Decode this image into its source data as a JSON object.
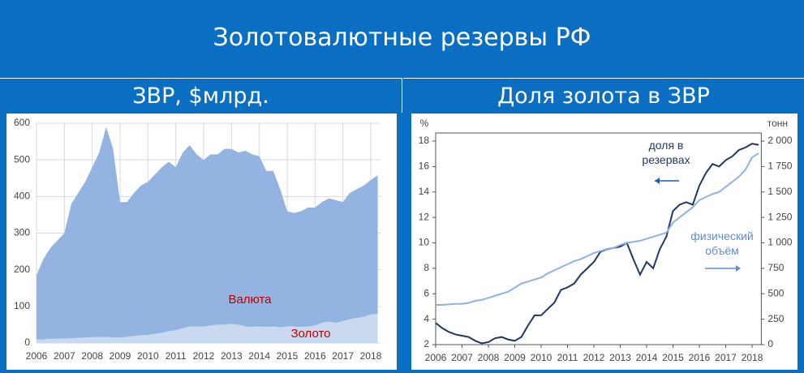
{
  "title": "Золотовалютные резервы РФ",
  "chart_data": [
    {
      "type": "area",
      "title": "ЗВР, $млрд.",
      "x": [
        2006,
        2006.25,
        2006.5,
        2006.75,
        2007,
        2007.25,
        2007.5,
        2007.75,
        2008,
        2008.25,
        2008.5,
        2008.75,
        2009,
        2009.25,
        2009.5,
        2009.75,
        2010,
        2010.25,
        2010.5,
        2010.75,
        2011,
        2011.25,
        2011.5,
        2011.75,
        2012,
        2012.25,
        2012.5,
        2012.75,
        2013,
        2013.25,
        2013.5,
        2013.75,
        2014,
        2014.25,
        2014.5,
        2014.75,
        2015,
        2015.25,
        2015.5,
        2015.75,
        2016,
        2016.25,
        2016.5,
        2016.75,
        2017,
        2017.25,
        2017.5,
        2017.75,
        2018,
        2018.25
      ],
      "series": [
        {
          "name": "Золото",
          "color": "#c9daf0",
          "label_color": "#c00000",
          "values": [
            10,
            10,
            11,
            12,
            12,
            13,
            14,
            15,
            16,
            16,
            17,
            15,
            15,
            17,
            19,
            21,
            22,
            25,
            28,
            32,
            35,
            40,
            45,
            45,
            45,
            48,
            50,
            50,
            52,
            50,
            45,
            44,
            45,
            44,
            45,
            43,
            45,
            45,
            44,
            45,
            48,
            55,
            58,
            55,
            60,
            65,
            68,
            72,
            78,
            80
          ]
        },
        {
          "name": "Валюта",
          "color": "#93b4e0",
          "label_color": "#c00000",
          "values": [
            175,
            220,
            249,
            268,
            288,
            367,
            396,
            425,
            464,
            504,
            573,
            515,
            370,
            368,
            391,
            409,
            418,
            435,
            452,
            463,
            445,
            480,
            495,
            470,
            455,
            467,
            465,
            480,
            478,
            470,
            480,
            471,
            465,
            426,
            425,
            377,
            315,
            310,
            316,
            325,
            322,
            330,
            337,
            335,
            325,
            345,
            352,
            358,
            367,
            378
          ]
        }
      ],
      "xlim": [
        2006,
        2018.35
      ],
      "xticks": [
        2006,
        2007,
        2008,
        2009,
        2010,
        2011,
        2012,
        2013,
        2014,
        2015,
        2016,
        2017,
        2018
      ],
      "ylim": [
        0,
        600
      ],
      "yticks": [
        0,
        100,
        200,
        300,
        400,
        500,
        600
      ],
      "grid": true
    },
    {
      "type": "line",
      "title": "Доля золота в ЗВР",
      "y_label": "%",
      "y2_label": "тонн",
      "x": [
        2006,
        2006.25,
        2006.5,
        2006.75,
        2007,
        2007.25,
        2007.5,
        2007.75,
        2008,
        2008.25,
        2008.5,
        2008.75,
        2009,
        2009.25,
        2009.5,
        2009.75,
        2010,
        2010.25,
        2010.5,
        2010.75,
        2011,
        2011.25,
        2011.5,
        2011.75,
        2012,
        2012.25,
        2012.5,
        2012.75,
        2013,
        2013.25,
        2013.5,
        2013.75,
        2014,
        2014.25,
        2014.5,
        2014.75,
        2015,
        2015.25,
        2015.5,
        2015.75,
        2016,
        2016.25,
        2016.5,
        2016.75,
        2017,
        2017.25,
        2017.5,
        2017.75,
        2018,
        2018.25
      ],
      "series": [
        {
          "name": "доля в резервах",
          "color": "#1f3864",
          "values": [
            3.7,
            3.3,
            3.0,
            2.8,
            2.7,
            2.6,
            2.3,
            2.1,
            2.2,
            2.5,
            2.6,
            2.4,
            2.3,
            2.6,
            3.5,
            4.3,
            4.3,
            4.8,
            5.3,
            6.3,
            6.5,
            6.8,
            7.5,
            8.0,
            8.5,
            9.3,
            9.5,
            9.6,
            9.7,
            10.0,
            8.7,
            7.5,
            8.5,
            8.0,
            9.5,
            10.5,
            12.5,
            13.0,
            13.2,
            13.0,
            14.5,
            15.5,
            16.2,
            16.0,
            16.5,
            16.8,
            17.3,
            17.5,
            17.8,
            17.7
          ]
        },
        {
          "name": "физический объём",
          "color": "#8db3e2",
          "axis": "y2",
          "values": [
            390,
            390,
            395,
            400,
            400,
            410,
            430,
            440,
            460,
            480,
            500,
            520,
            560,
            600,
            620,
            640,
            660,
            700,
            730,
            760,
            790,
            820,
            840,
            870,
            900,
            920,
            940,
            950,
            980,
            1000,
            1010,
            1020,
            1040,
            1060,
            1080,
            1100,
            1200,
            1250,
            1300,
            1350,
            1420,
            1450,
            1480,
            1500,
            1550,
            1600,
            1650,
            1720,
            1840,
            1880
          ]
        }
      ],
      "xlim": [
        2006,
        2018.35
      ],
      "xticks": [
        2006,
        2007,
        2008,
        2009,
        2010,
        2011,
        2012,
        2013,
        2014,
        2015,
        2016,
        2017,
        2018
      ],
      "ylim": [
        2,
        18
      ],
      "yticks": [
        2,
        4,
        6,
        8,
        10,
        12,
        14,
        16,
        18
      ],
      "y2lim": [
        0,
        2000
      ],
      "y2ticks": [
        0,
        250,
        500,
        750,
        {
          "value": 1000,
          "label": "1 000"
        },
        {
          "value": 1250,
          "label": "1 250"
        },
        {
          "value": 1500,
          "label": "1 500"
        },
        {
          "value": 1750,
          "label": "1 750"
        },
        {
          "value": 2000,
          "label": "2 000"
        }
      ],
      "grid": false
    }
  ]
}
